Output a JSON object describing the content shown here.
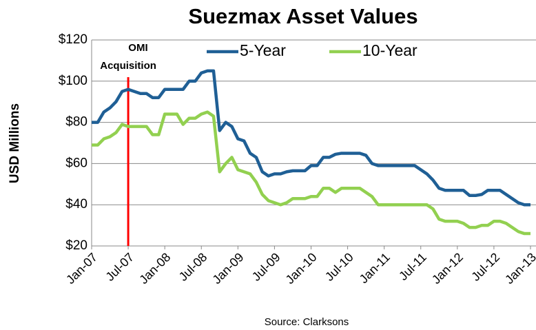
{
  "chart_data": {
    "type": "line",
    "title": "Suezmax Asset Values",
    "y_label": "USD Millions",
    "source": "Source: Clarksons",
    "categories": [
      "Jan-07",
      null,
      null,
      null,
      null,
      null,
      "Jul-07",
      null,
      null,
      null,
      null,
      null,
      "Jan-08",
      null,
      null,
      null,
      null,
      null,
      "Jul-08",
      null,
      null,
      null,
      null,
      null,
      "Jan-09",
      null,
      null,
      null,
      null,
      null,
      "Jul-09",
      null,
      null,
      null,
      null,
      null,
      "Jan-10",
      null,
      null,
      null,
      null,
      null,
      "Jul-10",
      null,
      null,
      null,
      null,
      null,
      "Jan-11",
      null,
      null,
      null,
      null,
      null,
      "Jul-11",
      null,
      null,
      null,
      null,
      null,
      "Jan-12",
      null,
      null,
      null,
      null,
      null,
      "Jul-12",
      null,
      null,
      null,
      null,
      null,
      "Jan-13"
    ],
    "series": [
      {
        "name": "5-Year",
        "color": "#1f5f95",
        "values": [
          80,
          80,
          85,
          87,
          90,
          95,
          96,
          95,
          94,
          94,
          92,
          92,
          96,
          96,
          96,
          96,
          100,
          100,
          104,
          105,
          105,
          76,
          80,
          78,
          72,
          71,
          65,
          63,
          56,
          54,
          55,
          55,
          56,
          56.5,
          56.5,
          56.5,
          59,
          59,
          63,
          63,
          64.5,
          65,
          65,
          65,
          65,
          64,
          60,
          59,
          59,
          59,
          59,
          59,
          59,
          59,
          57,
          55,
          52,
          48,
          47,
          47,
          47,
          47,
          44.5,
          44.5,
          45,
          47,
          47,
          47,
          45,
          43,
          41,
          40,
          40
        ]
      },
      {
        "name": "10-Year",
        "color": "#92d050",
        "values": [
          69,
          69,
          72,
          73,
          75,
          79,
          78,
          78,
          78,
          78,
          74,
          74,
          84,
          84,
          84,
          79,
          82,
          82,
          84,
          85,
          83,
          56,
          60,
          63,
          57,
          56,
          55,
          51,
          45,
          42,
          41,
          40,
          41,
          43,
          43,
          43,
          44,
          44,
          48,
          48,
          46,
          48,
          48,
          48,
          48,
          46,
          44,
          40,
          40,
          40,
          40,
          40,
          40,
          40,
          40,
          40,
          38,
          33,
          32,
          32,
          32,
          31,
          29,
          29,
          30,
          30,
          32,
          32,
          31,
          29,
          27,
          26,
          26
        ]
      }
    ],
    "ylim": [
      20,
      120
    ],
    "yticks": [
      {
        "value": 20,
        "label": "$20"
      },
      {
        "value": 40,
        "label": "$40"
      },
      {
        "value": 60,
        "label": "$60"
      },
      {
        "value": 80,
        "label": "$80"
      },
      {
        "value": 100,
        "label": "$100"
      },
      {
        "value": 120,
        "label": "$120"
      }
    ],
    "grid": true,
    "legend": "top",
    "annotation": {
      "x": "Jul-07",
      "lines": [
        "OMI",
        "Acquisition"
      ],
      "color": "#ff0000"
    }
  }
}
